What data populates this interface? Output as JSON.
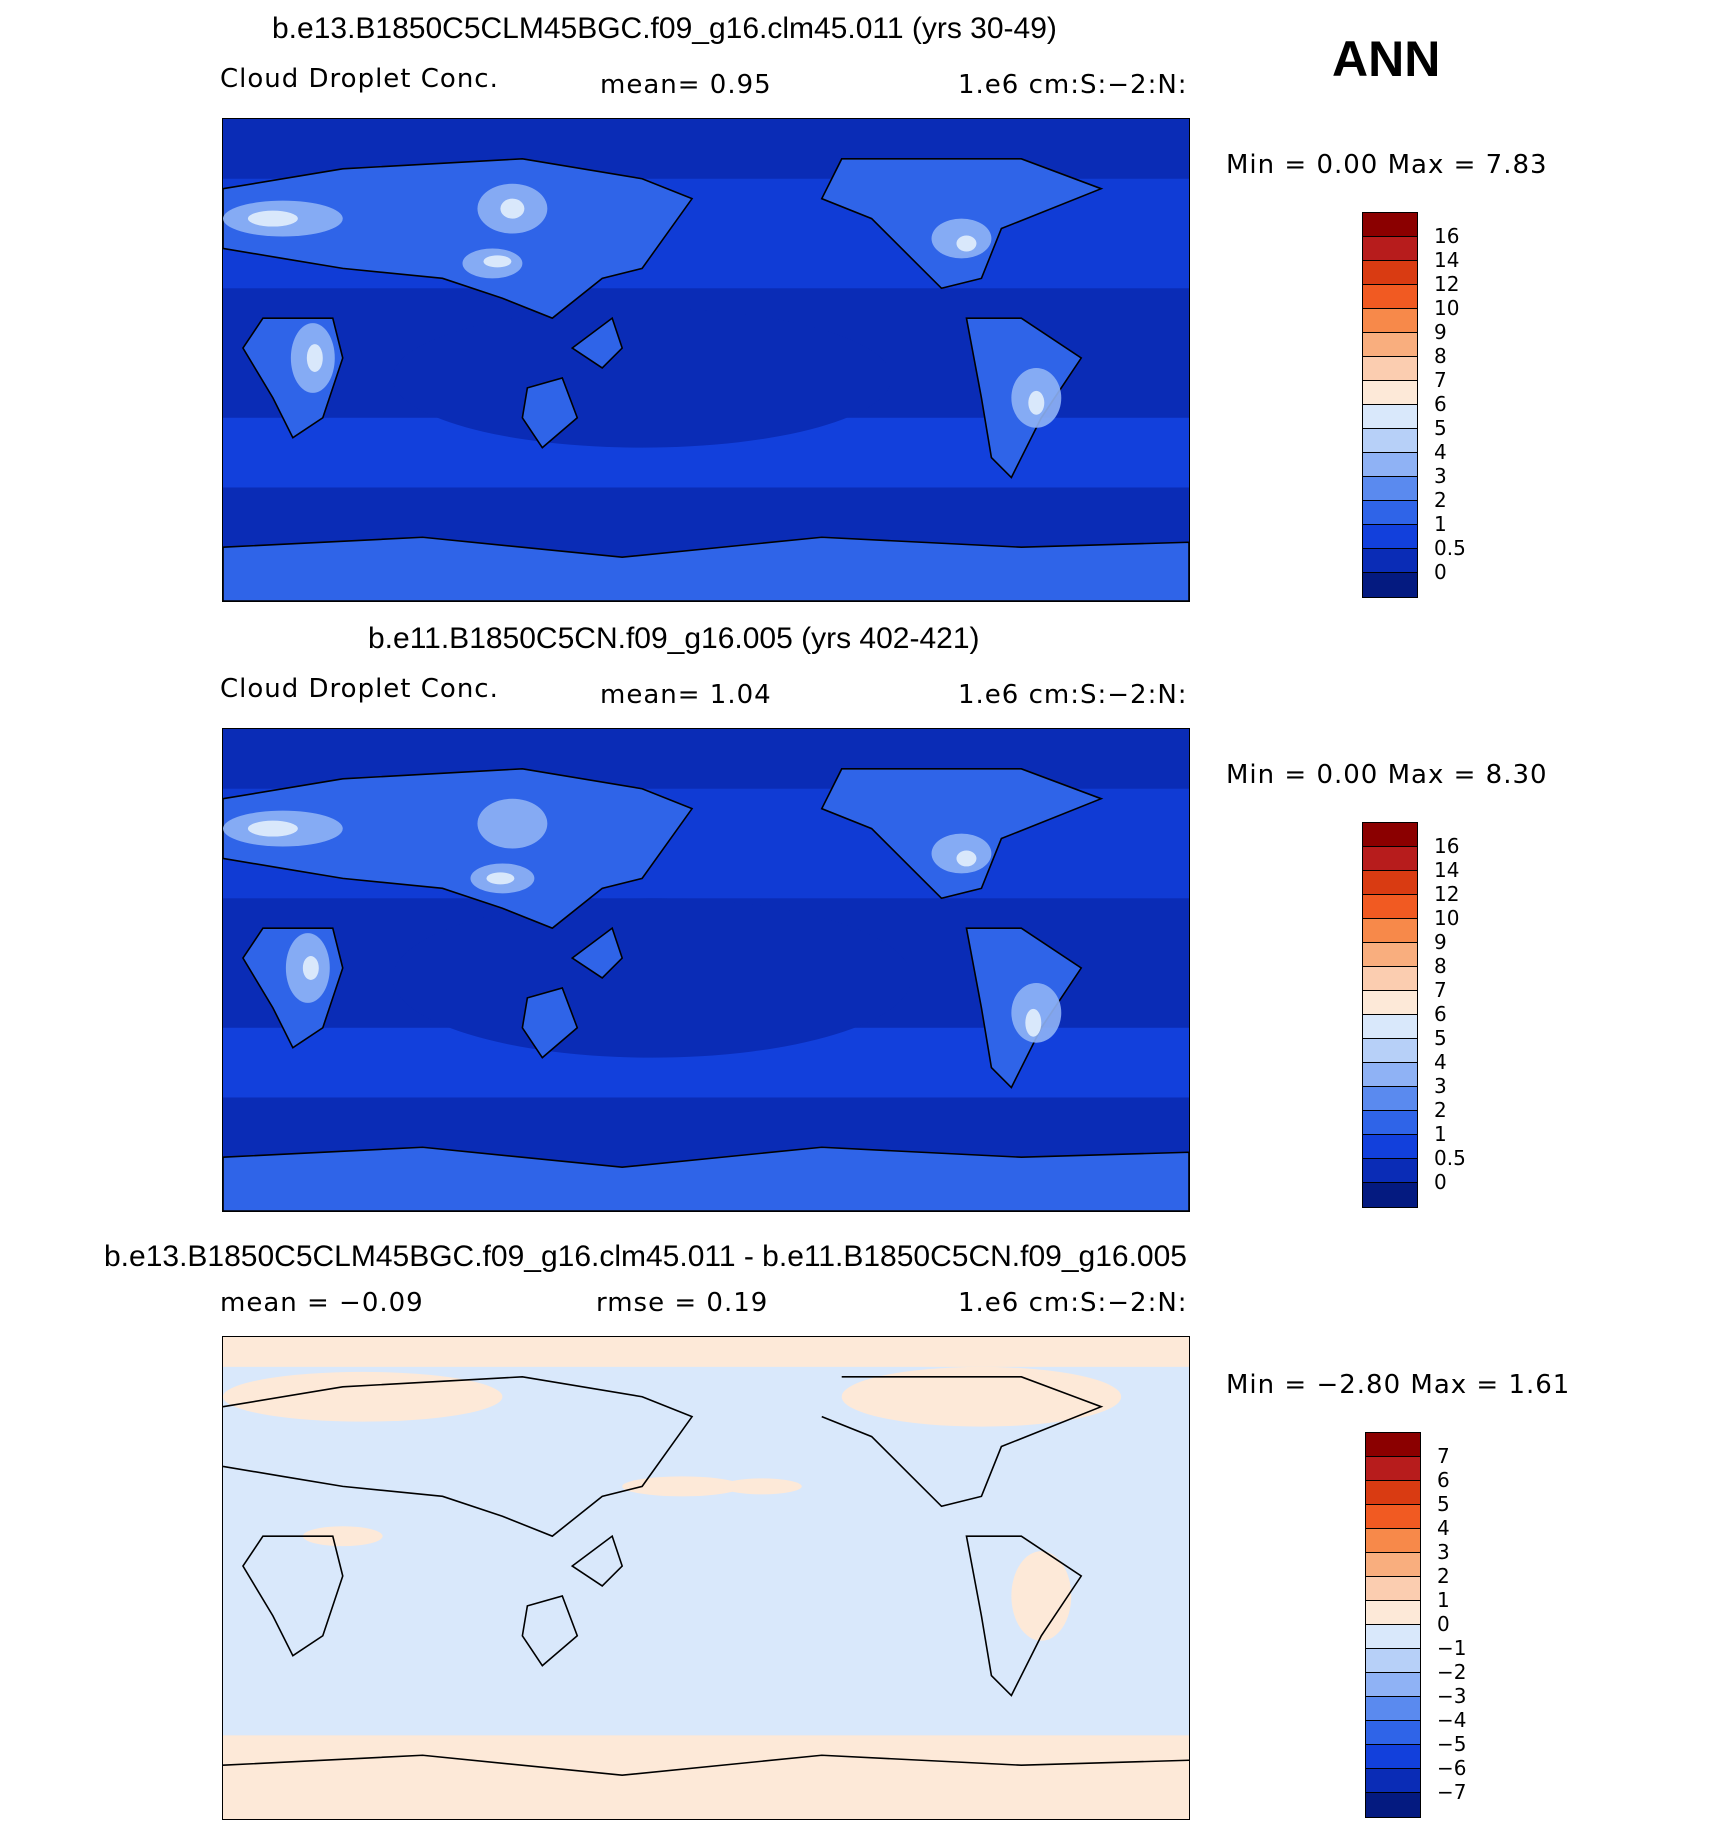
{
  "season_label": "ANN",
  "panels": [
    {
      "title": "b.e13.B1850C5CLM45BGC.f09_g16.clm45.011 (yrs 30-49)",
      "left_label": "Cloud Droplet Conc.",
      "mid_label": "mean=    0.95",
      "units": "1.e6 cm:S:−2:N:",
      "minmax": "Min =    0.00 Max =    7.83",
      "levels": [
        "16",
        "14",
        "12",
        "10",
        "9",
        "8",
        "7",
        "6",
        "5",
        "4",
        "3",
        "2",
        "1",
        "0.5",
        "0"
      ],
      "colors": [
        "#8b0000",
        "#b71c1c",
        "#d93b12",
        "#f15a22",
        "#f7894a",
        "#f9ae7e",
        "#fbcdb0",
        "#fde9d8",
        "#d9e8fb",
        "#b7d0f8",
        "#8fb2f5",
        "#5a8aef",
        "#2f64e8",
        "#1240dc",
        "#0a2cb6",
        "#041a80"
      ]
    },
    {
      "title": "b.e11.B1850C5CN.f09_g16.005 (yrs 402-421)",
      "left_label": "Cloud Droplet Conc.",
      "mid_label": "mean=    1.04",
      "units": "1.e6 cm:S:−2:N:",
      "minmax": "Min =    0.00 Max =    8.30",
      "levels": [
        "16",
        "14",
        "12",
        "10",
        "9",
        "8",
        "7",
        "6",
        "5",
        "4",
        "3",
        "2",
        "1",
        "0.5",
        "0"
      ],
      "colors": [
        "#8b0000",
        "#b71c1c",
        "#d93b12",
        "#f15a22",
        "#f7894a",
        "#f9ae7e",
        "#fbcdb0",
        "#fde9d8",
        "#d9e8fb",
        "#b7d0f8",
        "#8fb2f5",
        "#5a8aef",
        "#2f64e8",
        "#1240dc",
        "#0a2cb6",
        "#041a80"
      ]
    },
    {
      "title": "b.e13.B1850C5CLM45BGC.f09_g16.clm45.011 - b.e11.B1850C5CN.f09_g16.005",
      "left_label": "mean =   −0.09",
      "mid_label": "rmse =    0.19",
      "units": "1.e6 cm:S:−2:N:",
      "minmax": "Min =  −2.80 Max =    1.61",
      "levels": [
        "7",
        "6",
        "5",
        "4",
        "3",
        "2",
        "1",
        "0",
        "−1",
        "−2",
        "−3",
        "−4",
        "−5",
        "−6",
        "−7"
      ],
      "colors": [
        "#8b0000",
        "#b71c1c",
        "#d93b12",
        "#f15a22",
        "#f7894a",
        "#f9ae7e",
        "#fbcdb0",
        "#fde9d8",
        "#d9e8fb",
        "#b7d0f8",
        "#8fb2f5",
        "#5a8aef",
        "#2f64e8",
        "#1240dc",
        "#0a2cb6",
        "#041a80"
      ]
    }
  ]
}
